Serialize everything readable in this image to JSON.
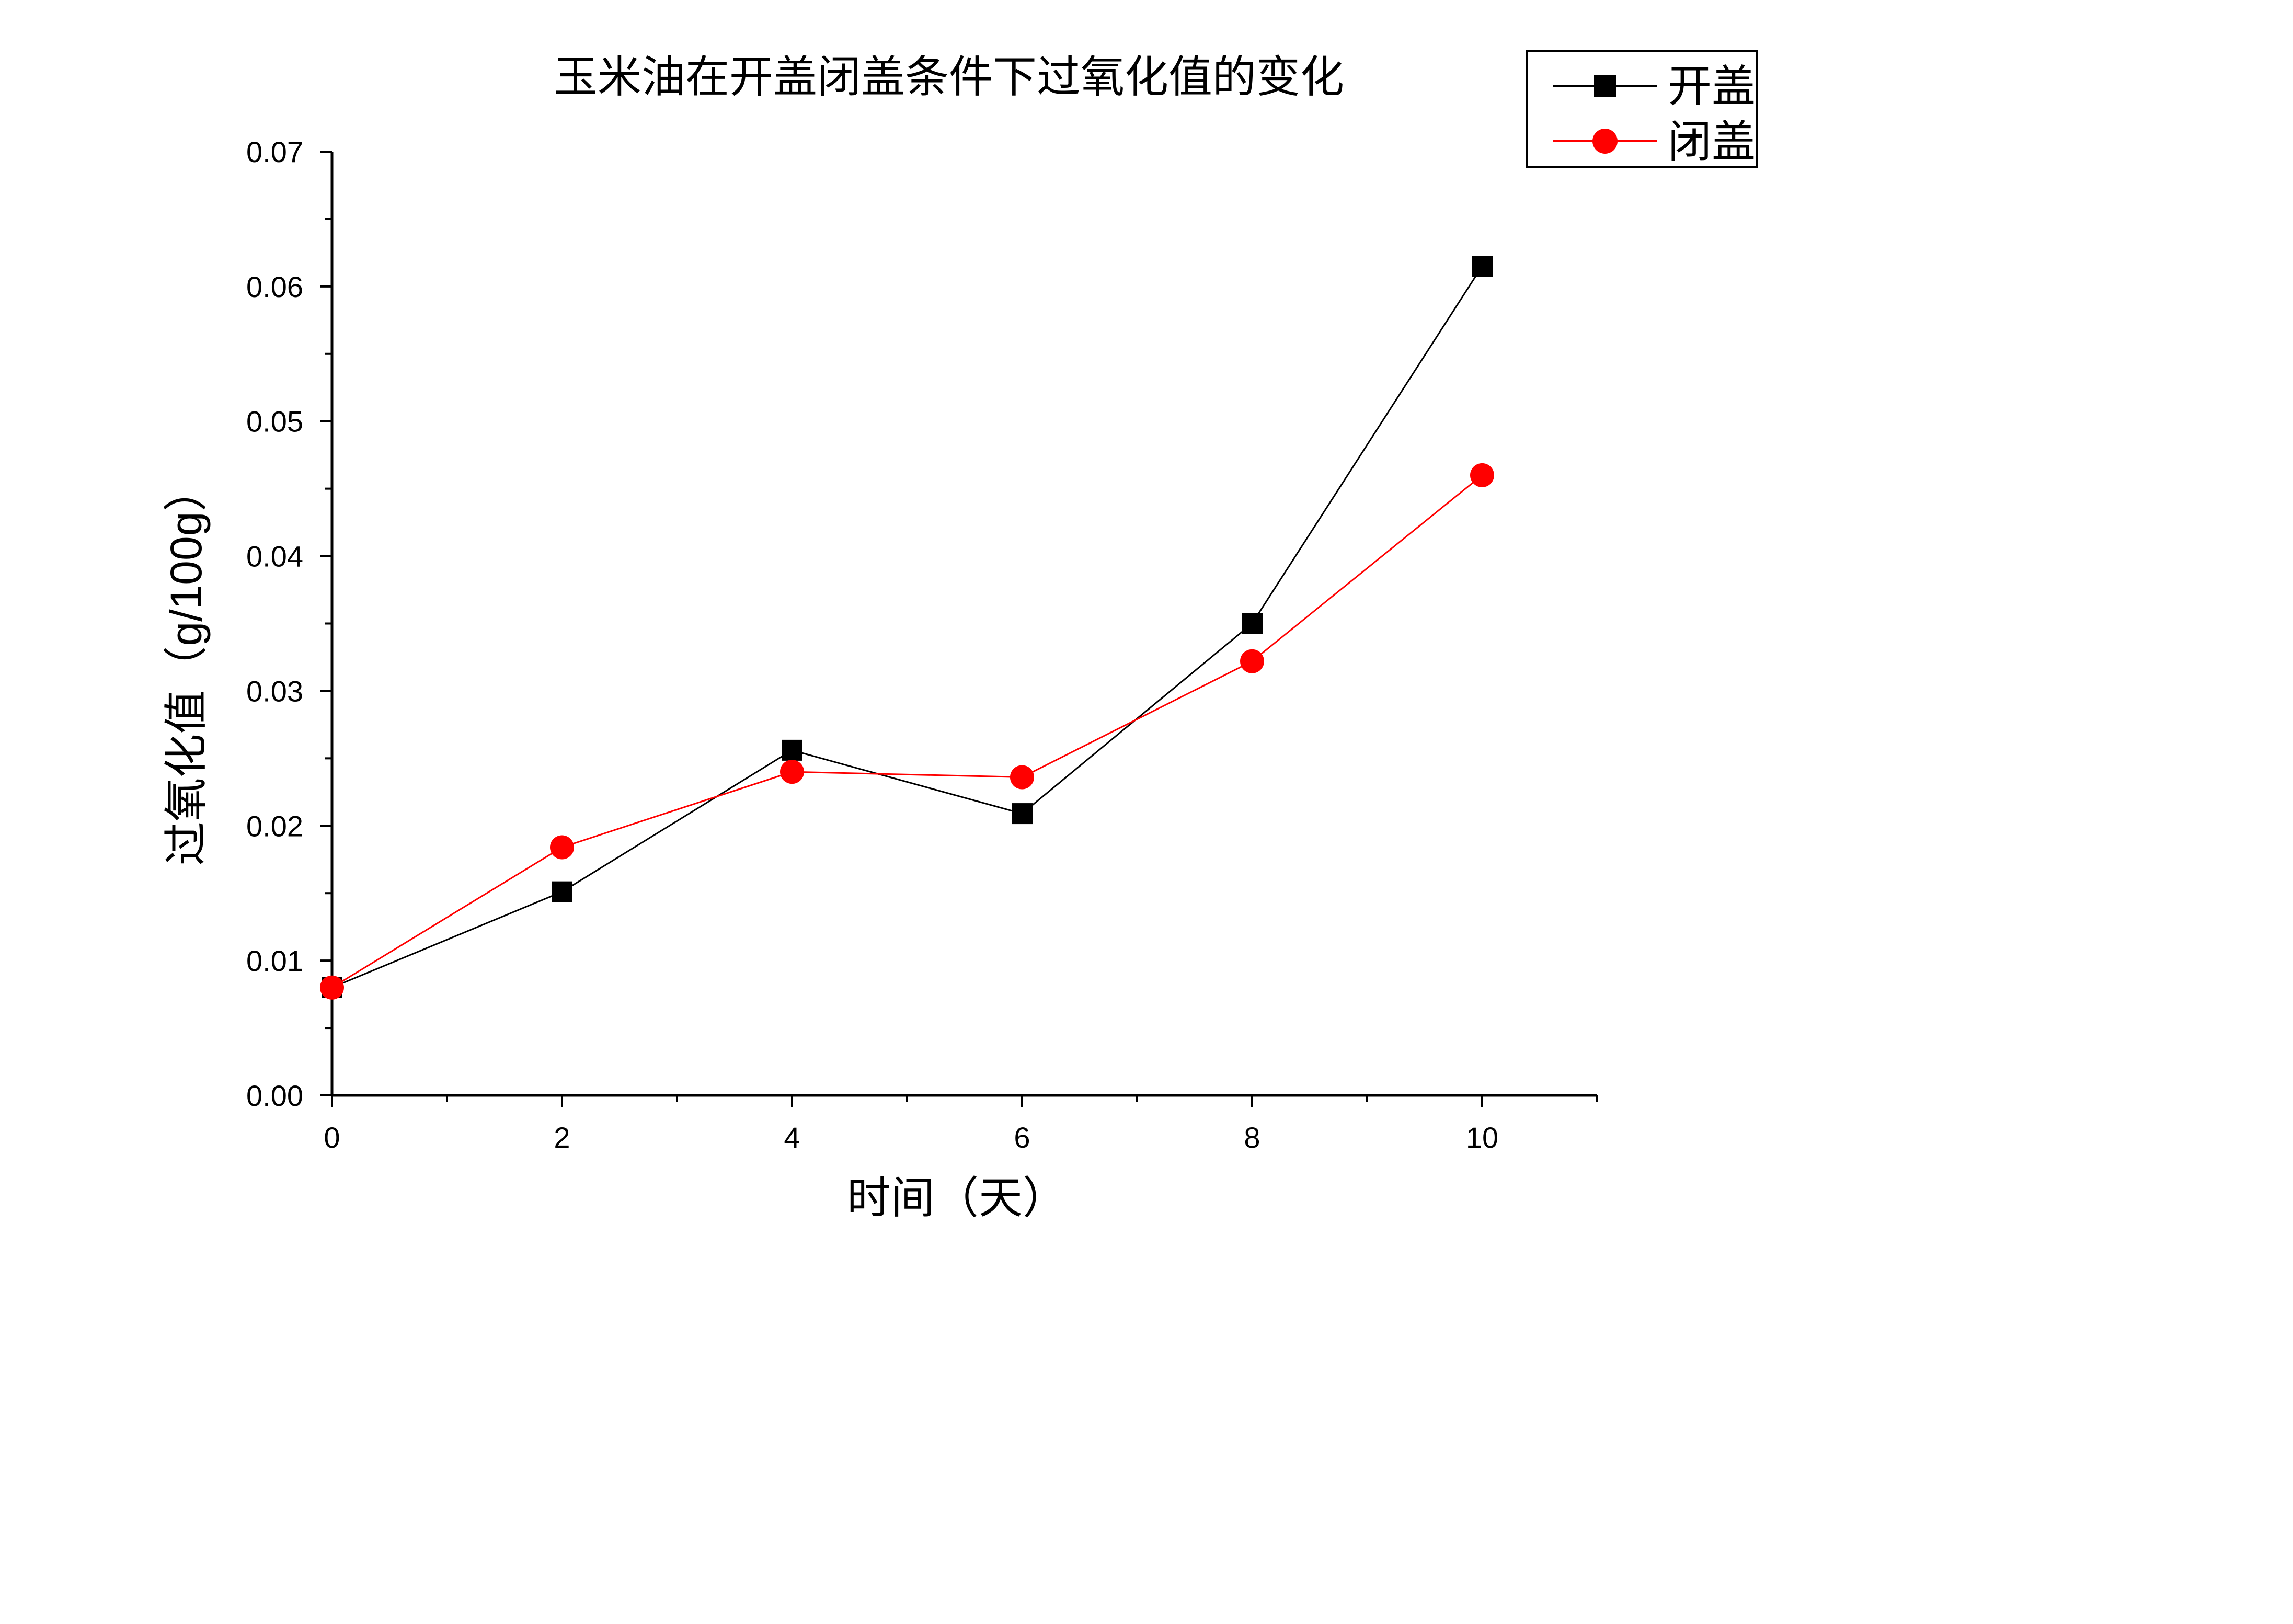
{
  "chart_data": {
    "type": "line",
    "title": "玉米油在开盖闭盖条件下过氧化值的变化",
    "xlabel": "时间（天）",
    "ylabel": "过氧化值（g/100g）",
    "x": [
      0,
      2,
      4,
      6,
      8,
      10
    ],
    "xlim": [
      0,
      11
    ],
    "ylim": [
      0,
      0.07
    ],
    "x_ticks": [
      "0",
      "2",
      "4",
      "6",
      "8",
      "10"
    ],
    "y_ticks": [
      "0.00",
      "0.01",
      "0.02",
      "0.03",
      "0.04",
      "0.05",
      "0.06",
      "0.07"
    ],
    "grid": false,
    "legend_position": "top-right",
    "series": [
      {
        "name": "开盖",
        "color": "#000000",
        "marker": "square",
        "values": [
          0.008,
          0.0151,
          0.0256,
          0.0209,
          0.035,
          0.0615
        ]
      },
      {
        "name": "闭盖",
        "color": "#ff0000",
        "marker": "circle",
        "values": [
          0.008,
          0.0184,
          0.024,
          0.0236,
          0.0322,
          0.046
        ]
      }
    ]
  }
}
